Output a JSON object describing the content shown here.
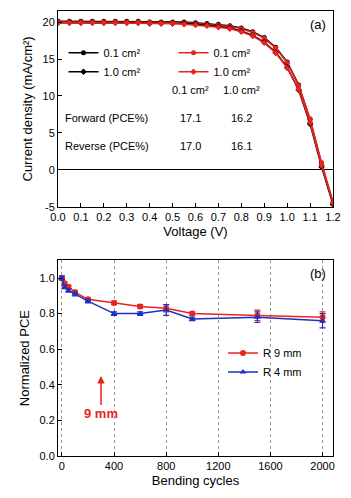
{
  "chart_data": [
    {
      "type": "line",
      "panel_label": "(a)",
      "x_label": "Voltage (V)",
      "y_label": "Current density (mA/cm²)",
      "x": [
        0,
        0.05,
        0.1,
        0.15,
        0.2,
        0.25,
        0.3,
        0.35,
        0.4,
        0.45,
        0.5,
        0.55,
        0.6,
        0.65,
        0.7,
        0.75,
        0.8,
        0.85,
        0.9,
        0.95,
        1.0,
        1.05,
        1.1,
        1.15,
        1.2
      ],
      "series": [
        {
          "name": "0.1 cm²",
          "color": "#000000",
          "marker": "circle",
          "values": [
            20.1,
            20.1,
            20.1,
            20.1,
            20.1,
            20.1,
            20.1,
            20.1,
            20.0,
            20.0,
            20.0,
            20.0,
            19.9,
            19.8,
            19.7,
            19.5,
            19.2,
            18.7,
            17.9,
            16.6,
            14.6,
            11.5,
            6.8,
            0.8,
            -4.6
          ]
        },
        {
          "name": "0.1 cm²",
          "color": "#e8241f",
          "marker": "circle",
          "values": [
            20.0,
            20.0,
            20.0,
            20.0,
            20.0,
            20.0,
            20.0,
            20.0,
            20.0,
            19.9,
            19.9,
            19.9,
            19.8,
            19.7,
            19.6,
            19.4,
            19.1,
            18.6,
            17.8,
            16.5,
            14.5,
            11.4,
            6.9,
            1.0,
            -4.3
          ]
        },
        {
          "name": "1.0 cm²",
          "color": "#000000",
          "marker": "diamond",
          "values": [
            19.9,
            19.9,
            19.9,
            19.9,
            19.9,
            19.9,
            19.9,
            19.9,
            19.8,
            19.8,
            19.8,
            19.8,
            19.7,
            19.6,
            19.4,
            19.2,
            18.8,
            18.2,
            17.3,
            15.9,
            13.9,
            10.8,
            6.2,
            0.4,
            -4.7
          ]
        },
        {
          "name": "1.0 cm²",
          "color": "#e8241f",
          "marker": "diamond",
          "values": [
            19.9,
            19.9,
            19.9,
            19.9,
            19.9,
            19.9,
            19.9,
            19.9,
            19.8,
            19.8,
            19.8,
            19.7,
            19.6,
            19.5,
            19.3,
            19.1,
            18.7,
            18.1,
            17.2,
            15.8,
            13.8,
            10.9,
            6.4,
            0.6,
            -4.5
          ]
        }
      ],
      "xlim": [
        0,
        1.2
      ],
      "xticks": [
        {
          "value": 0,
          "label": "0.0"
        },
        {
          "value": 0.1,
          "label": "0.1"
        },
        {
          "value": 0.2,
          "label": "0.2"
        },
        {
          "value": 0.3,
          "label": "0.3"
        },
        {
          "value": 0.4,
          "label": "0.4"
        },
        {
          "value": 0.5,
          "label": "0.5"
        },
        {
          "value": 0.6,
          "label": "0.6"
        },
        {
          "value": 0.7,
          "label": "0.7"
        },
        {
          "value": 0.8,
          "label": "0.8"
        },
        {
          "value": 0.9,
          "label": "0.9"
        },
        {
          "value": 1.0,
          "label": "1.0"
        },
        {
          "value": 1.1,
          "label": "1.1"
        },
        {
          "value": 1.2,
          "label": "1.2"
        }
      ],
      "ylim": [
        -5,
        21.5
      ],
      "yticks": [
        -5,
        0,
        5,
        10,
        15,
        20
      ],
      "grid": false,
      "legend": "upper left",
      "table": {
        "columns": [
          "0.1 cm²",
          "1.0 cm²"
        ],
        "rows": [
          {
            "label": "Forward (PCE%)",
            "cells": [
              "17.1",
              "16.2"
            ]
          },
          {
            "label": "Reverse (PCE%)",
            "cells": [
              "17.0",
              "16.1"
            ]
          }
        ]
      }
    },
    {
      "type": "line",
      "panel_label": "(b)",
      "x_label": "Bending cycles",
      "y_label": "Normalized PCE",
      "x": [
        0,
        20,
        50,
        100,
        200,
        400,
        600,
        800,
        1000,
        1500,
        2000
      ],
      "series": [
        {
          "name": "R 9 mm",
          "color": "#e8241f",
          "marker": "circle",
          "values": [
            1.0,
            0.97,
            0.95,
            0.92,
            0.88,
            0.86,
            0.84,
            0.83,
            0.8,
            0.79,
            0.78
          ],
          "errors": [
            0.01,
            0.01,
            0.01,
            0.01,
            0.01,
            0.01,
            0.01,
            0.02,
            0.01,
            0.03,
            0.03
          ]
        },
        {
          "name": "R 4 mm",
          "color": "#1f2fbf",
          "marker": "triangle-up",
          "values": [
            1.0,
            0.95,
            0.93,
            0.91,
            0.87,
            0.8,
            0.8,
            0.82,
            0.77,
            0.78,
            0.76
          ],
          "errors": [
            0.01,
            0.01,
            0.01,
            0.01,
            0.01,
            0.01,
            0.01,
            0.03,
            0.01,
            0.03,
            0.04
          ]
        }
      ],
      "xlim": [
        -30,
        2080
      ],
      "xticks": [
        0,
        400,
        800,
        1200,
        1600,
        2000
      ],
      "ylim": [
        0,
        1.1
      ],
      "yticks": [
        {
          "value": 0,
          "label": "0.0"
        },
        {
          "value": 0.2,
          "label": "0.2"
        },
        {
          "value": 0.4,
          "label": "0.4"
        },
        {
          "value": 0.6,
          "label": "0.6"
        },
        {
          "value": 0.8,
          "label": "0.8"
        },
        {
          "value": 1.0,
          "label": "1.0"
        }
      ],
      "grid": "x",
      "legend": "right",
      "annotations": [
        "9 mm"
      ]
    }
  ]
}
